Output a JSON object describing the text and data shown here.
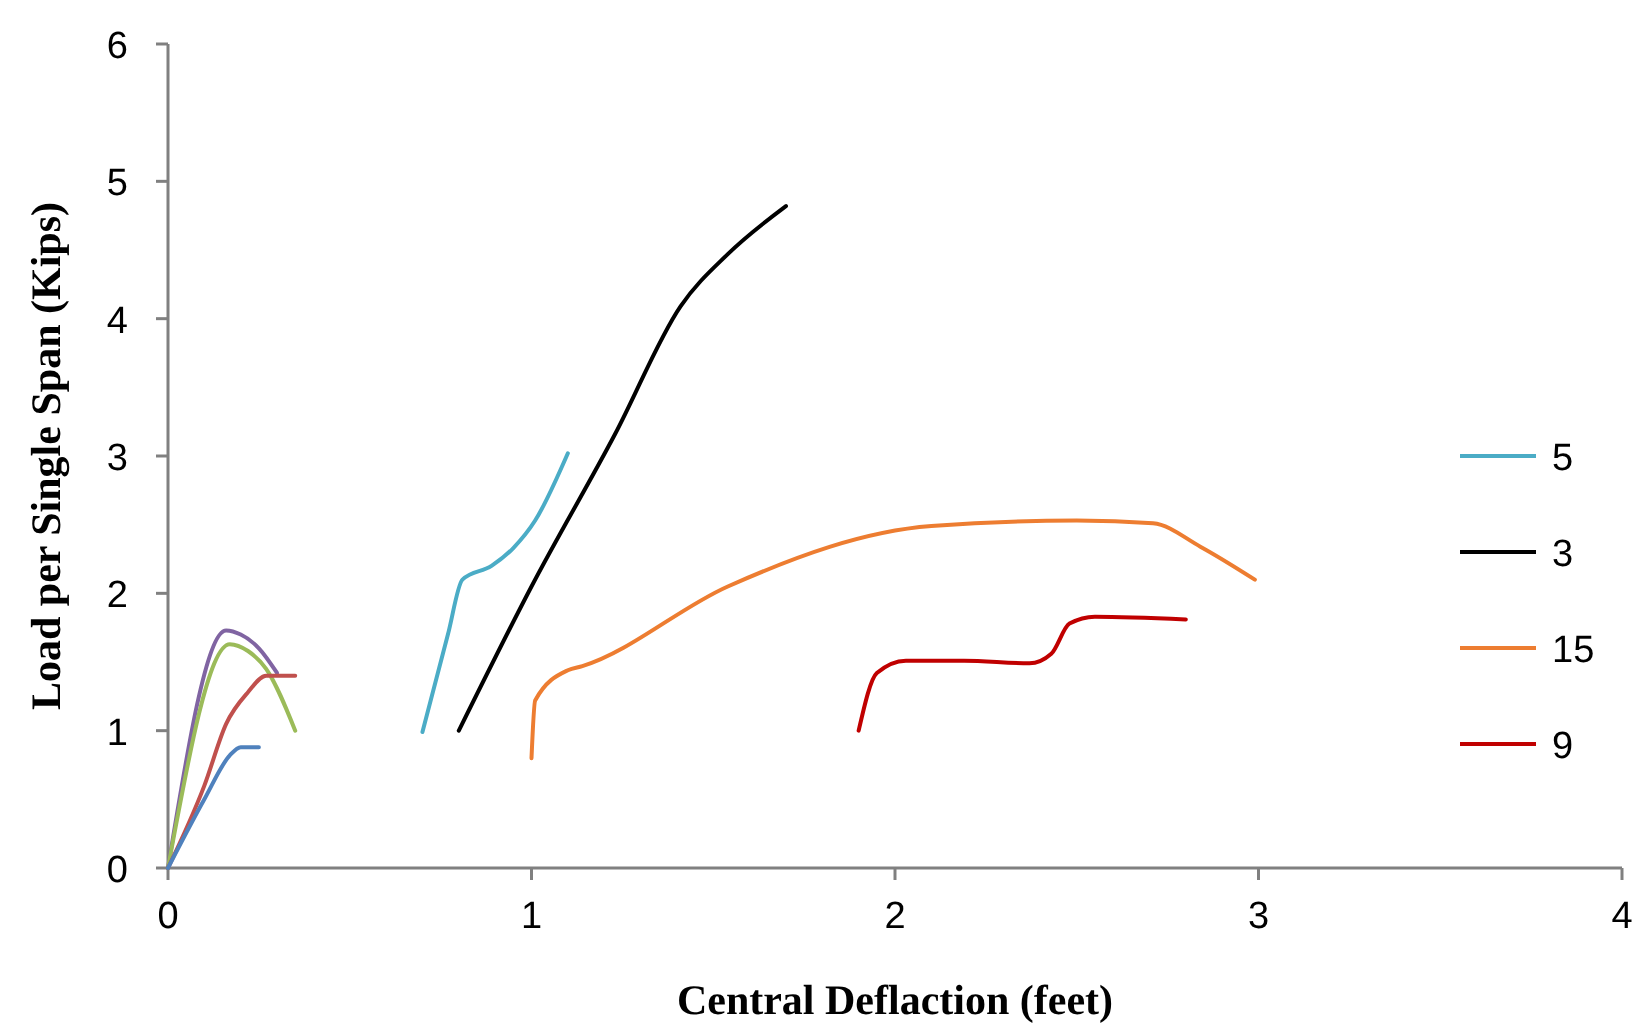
{
  "chart_data": {
    "type": "line",
    "xlabel": "Central Deflaction (feet)",
    "ylabel": "Load per Single Span (Kips)",
    "xlim": [
      0,
      4
    ],
    "xticks": [
      0,
      1,
      2,
      3,
      4
    ],
    "ylim": [
      0,
      6
    ],
    "yticks": [
      0,
      1,
      2,
      3,
      4,
      5,
      6
    ],
    "grid": false,
    "legend": "right",
    "marker": "none",
    "line_style": "solid",
    "series": [
      {
        "name": "5",
        "color": "#4bacc6",
        "x": [
          0.7,
          0.77,
          0.81,
          0.89,
          0.95,
          1.01,
          1.1
        ],
        "values": [
          0.99,
          1.7,
          2.1,
          2.2,
          2.33,
          2.53,
          3.02
        ]
      },
      {
        "name": "3",
        "color": "#000000",
        "x": [
          0.8,
          1.0,
          1.23,
          1.41,
          1.54,
          1.7
        ],
        "values": [
          1.0,
          2.05,
          3.16,
          4.09,
          4.47,
          4.82
        ]
      },
      {
        "name": "15",
        "color": "#ed7d31",
        "x": [
          1.0,
          1.01,
          1.1,
          1.14,
          1.54,
          2.1,
          2.5,
          2.71,
          2.84,
          2.99
        ],
        "values": [
          0.8,
          1.22,
          1.44,
          1.47,
          2.05,
          2.49,
          2.53,
          2.51,
          2.34,
          2.1
        ]
      },
      {
        "name": "9",
        "color": "#c00000",
        "x": [
          1.9,
          1.95,
          2.03,
          2.19,
          2.37,
          2.43,
          2.48,
          2.55,
          2.8
        ],
        "values": [
          1.0,
          1.42,
          1.51,
          1.51,
          1.49,
          1.56,
          1.78,
          1.83,
          1.81
        ]
      },
      {
        "color": "#8064a2",
        "x": [
          0,
          0.16,
          0.2,
          0.25,
          0.3
        ],
        "values": [
          0,
          1.73,
          1.7,
          1.6,
          1.42
        ]
      },
      {
        "color": "#9bbb59",
        "x": [
          0,
          0.17,
          0.22,
          0.27,
          0.35
        ],
        "values": [
          0,
          1.63,
          1.58,
          1.45,
          1.0
        ]
      },
      {
        "color": "#c0504d",
        "x": [
          0,
          0.1,
          0.16,
          0.22,
          0.27,
          0.35
        ],
        "values": [
          0,
          0.6,
          1.05,
          1.28,
          1.4,
          1.4
        ]
      },
      {
        "color": "#4f81bd",
        "x": [
          0,
          0.1,
          0.17,
          0.2,
          0.25
        ],
        "values": [
          0,
          0.5,
          0.82,
          0.88,
          0.88
        ]
      }
    ]
  }
}
